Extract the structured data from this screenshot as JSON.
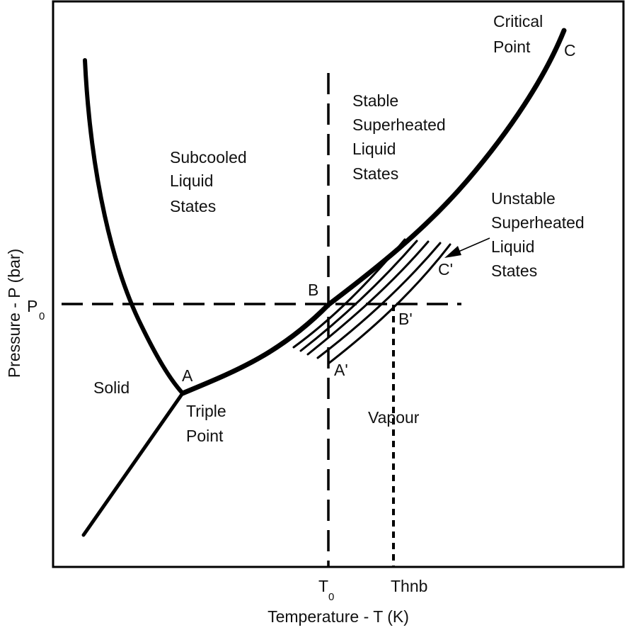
{
  "figure": {
    "axes": {
      "x_label": "Temperature - T (K)",
      "y_label": "Pressure - P (bar)",
      "t0_label": "T",
      "t0_sub": "0",
      "thnb_label": "Thnb",
      "p0_label": "P",
      "p0_sub": "0"
    },
    "regions": {
      "subcooled": [
        "Subcooled",
        "Liquid",
        "States"
      ],
      "stable": [
        "Stable",
        "Superheated",
        "Liquid",
        "States"
      ],
      "unstable": [
        "Unstable",
        "Superheated",
        "Liquid",
        "States"
      ],
      "solid": "Solid",
      "vapour": "Vapour"
    },
    "points": {
      "critical": [
        "Critical",
        "Point"
      ],
      "c": "C",
      "triple": [
        "Triple",
        "Point"
      ],
      "a": "A",
      "b": "B",
      "a_prime": "A'",
      "b_prime": "B'",
      "c_prime": "C'"
    },
    "colors": {
      "line": "#000000",
      "text": "#111111",
      "background": "#ffffff"
    }
  }
}
